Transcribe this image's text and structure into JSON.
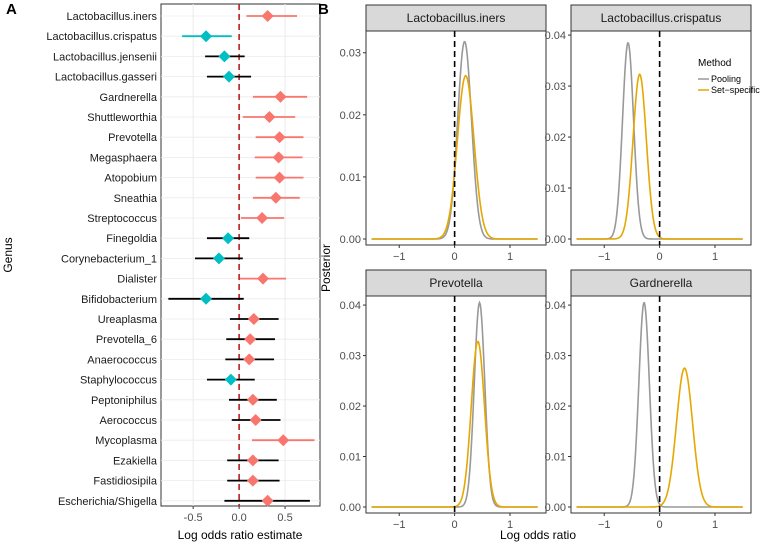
{
  "colors": {
    "positive": "#F8766D",
    "negative": "#00BFC4",
    "pooling": "#999999",
    "set_specific": "#E6A700",
    "zero_line_a": "#B22222",
    "strip": "#D9D9D9",
    "grid": "#EBEBEB"
  },
  "chart_data": [
    {
      "panel_label": "A",
      "type": "scatter",
      "title": "",
      "xlabel": "Log odds ratio estimate",
      "ylabel": "Genus",
      "xlim": [
        -0.85,
        0.88
      ],
      "xticks": [
        -0.5,
        0.0,
        0.5
      ],
      "xtick_labels": [
        "-0.5",
        "0.0",
        "0.5"
      ],
      "reference_line": 0,
      "points": [
        {
          "genus": "Lactobacillus.iners",
          "estimate": 0.31,
          "lo": 0.08,
          "hi": 0.63,
          "sign": "positive"
        },
        {
          "genus": "Lactobacillus.crispatus",
          "estimate": -0.36,
          "lo": -0.62,
          "hi": -0.08,
          "sign": "negative"
        },
        {
          "genus": "Lactobacillus.jensenii",
          "estimate": -0.16,
          "lo": -0.37,
          "hi": 0.06,
          "sign": "negative"
        },
        {
          "genus": "Lactobacillus.gasseri",
          "estimate": -0.11,
          "lo": -0.35,
          "hi": 0.13,
          "sign": "negative"
        },
        {
          "genus": "Gardnerella",
          "estimate": 0.45,
          "lo": 0.15,
          "hi": 0.74,
          "sign": "positive"
        },
        {
          "genus": "Shuttleworthia",
          "estimate": 0.33,
          "lo": 0.04,
          "hi": 0.61,
          "sign": "positive"
        },
        {
          "genus": "Prevotella",
          "estimate": 0.44,
          "lo": 0.18,
          "hi": 0.7,
          "sign": "positive"
        },
        {
          "genus": "Megasphaera",
          "estimate": 0.43,
          "lo": 0.17,
          "hi": 0.69,
          "sign": "positive"
        },
        {
          "genus": "Atopobium",
          "estimate": 0.44,
          "lo": 0.18,
          "hi": 0.7,
          "sign": "positive"
        },
        {
          "genus": "Sneathia",
          "estimate": 0.4,
          "lo": 0.15,
          "hi": 0.66,
          "sign": "positive"
        },
        {
          "genus": "Streptococcus",
          "estimate": 0.25,
          "lo": 0.02,
          "hi": 0.49,
          "sign": "positive"
        },
        {
          "genus": "Finegoldia",
          "estimate": -0.12,
          "lo": -0.35,
          "hi": 0.11,
          "sign": "negative"
        },
        {
          "genus": "Corynebacterium_1",
          "estimate": -0.22,
          "lo": -0.48,
          "hi": 0.04,
          "sign": "negative"
        },
        {
          "genus": "Dialister",
          "estimate": 0.26,
          "lo": 0.01,
          "hi": 0.51,
          "sign": "positive"
        },
        {
          "genus": "Bifidobacterium",
          "estimate": -0.36,
          "lo": -0.77,
          "hi": 0.05,
          "sign": "negative"
        },
        {
          "genus": "Ureaplasma",
          "estimate": 0.16,
          "lo": -0.1,
          "hi": 0.43,
          "sign": "positive"
        },
        {
          "genus": "Prevotella_6",
          "estimate": 0.12,
          "lo": -0.14,
          "hi": 0.39,
          "sign": "positive"
        },
        {
          "genus": "Anaerococcus",
          "estimate": 0.11,
          "lo": -0.15,
          "hi": 0.38,
          "sign": "positive"
        },
        {
          "genus": "Staphylococcus",
          "estimate": -0.09,
          "lo": -0.35,
          "hi": 0.17,
          "sign": "negative"
        },
        {
          "genus": "Peptoniphilus",
          "estimate": 0.15,
          "lo": -0.11,
          "hi": 0.41,
          "sign": "positive"
        },
        {
          "genus": "Aerococcus",
          "estimate": 0.18,
          "lo": -0.08,
          "hi": 0.45,
          "sign": "positive"
        },
        {
          "genus": "Mycoplasma",
          "estimate": 0.48,
          "lo": 0.14,
          "hi": 0.82,
          "sign": "positive"
        },
        {
          "genus": "Ezakiella",
          "estimate": 0.15,
          "lo": -0.13,
          "hi": 0.43,
          "sign": "positive"
        },
        {
          "genus": "Fastidiosipila",
          "estimate": 0.15,
          "lo": -0.13,
          "hi": 0.44,
          "sign": "positive"
        },
        {
          "genus": "Escherichia/Shigella",
          "estimate": 0.31,
          "lo": -0.16,
          "hi": 0.77,
          "sign": "positive"
        }
      ]
    },
    {
      "panel_label": "B",
      "type": "line",
      "xlabel": "Log odds ratio",
      "ylabel": "Posterior",
      "xlim": [
        -1.6,
        1.65
      ],
      "xticks": [
        -1,
        0,
        1
      ],
      "xtick_labels": [
        "−1",
        "0",
        "1"
      ],
      "reference_line": 0,
      "legend": {
        "title": "Method",
        "entries": [
          "Pooling",
          "Set−specific"
        ],
        "position": "right"
      },
      "facets": [
        {
          "title": "Lactobacillus.iners",
          "ylim": [
            0,
            0.0335
          ],
          "yticks": [
            0,
            0.01,
            0.02,
            0.03
          ],
          "ytick_labels": [
            "0.00",
            "0.01",
            "0.02",
            "0.03"
          ],
          "series": [
            {
              "name": "Pooling",
              "mean": 0.18,
              "sd": 0.125,
              "peak": 0.0318
            },
            {
              "name": "Set−specific",
              "mean": 0.2,
              "sd": 0.15,
              "peak": 0.0263
            }
          ]
        },
        {
          "title": "Lactobacillus.crispatus",
          "ylim": [
            0,
            0.0408
          ],
          "yticks": [
            0,
            0.01,
            0.02,
            0.03,
            0.04
          ],
          "ytick_labels": [
            "0.00",
            "0.01",
            "0.02",
            "0.03",
            "0.04"
          ],
          "series": [
            {
              "name": "Pooling",
              "mean": -0.57,
              "sd": 0.1,
              "peak": 0.0385
            },
            {
              "name": "Set−specific",
              "mean": -0.36,
              "sd": 0.12,
              "peak": 0.0323
            }
          ]
        },
        {
          "title": "Prevotella",
          "ylim": [
            0,
            0.0418
          ],
          "yticks": [
            0,
            0.01,
            0.02,
            0.03,
            0.04
          ],
          "ytick_labels": [
            "0.00",
            "0.01",
            "0.02",
            "0.03",
            "0.04"
          ],
          "series": [
            {
              "name": "Pooling",
              "mean": 0.45,
              "sd": 0.095,
              "peak": 0.0405
            },
            {
              "name": "Set−specific",
              "mean": 0.42,
              "sd": 0.12,
              "peak": 0.0328
            }
          ]
        },
        {
          "title": "Gardnerella",
          "ylim": [
            0,
            0.0418
          ],
          "yticks": [
            0,
            0.01,
            0.02,
            0.03,
            0.04
          ],
          "ytick_labels": [
            "0.00",
            "0.01",
            "0.02",
            "0.03",
            "0.04"
          ],
          "series": [
            {
              "name": "Pooling",
              "mean": -0.28,
              "sd": 0.095,
              "peak": 0.0405
            },
            {
              "name": "Set−specific",
              "mean": 0.45,
              "sd": 0.145,
              "peak": 0.0275
            }
          ]
        }
      ]
    }
  ]
}
